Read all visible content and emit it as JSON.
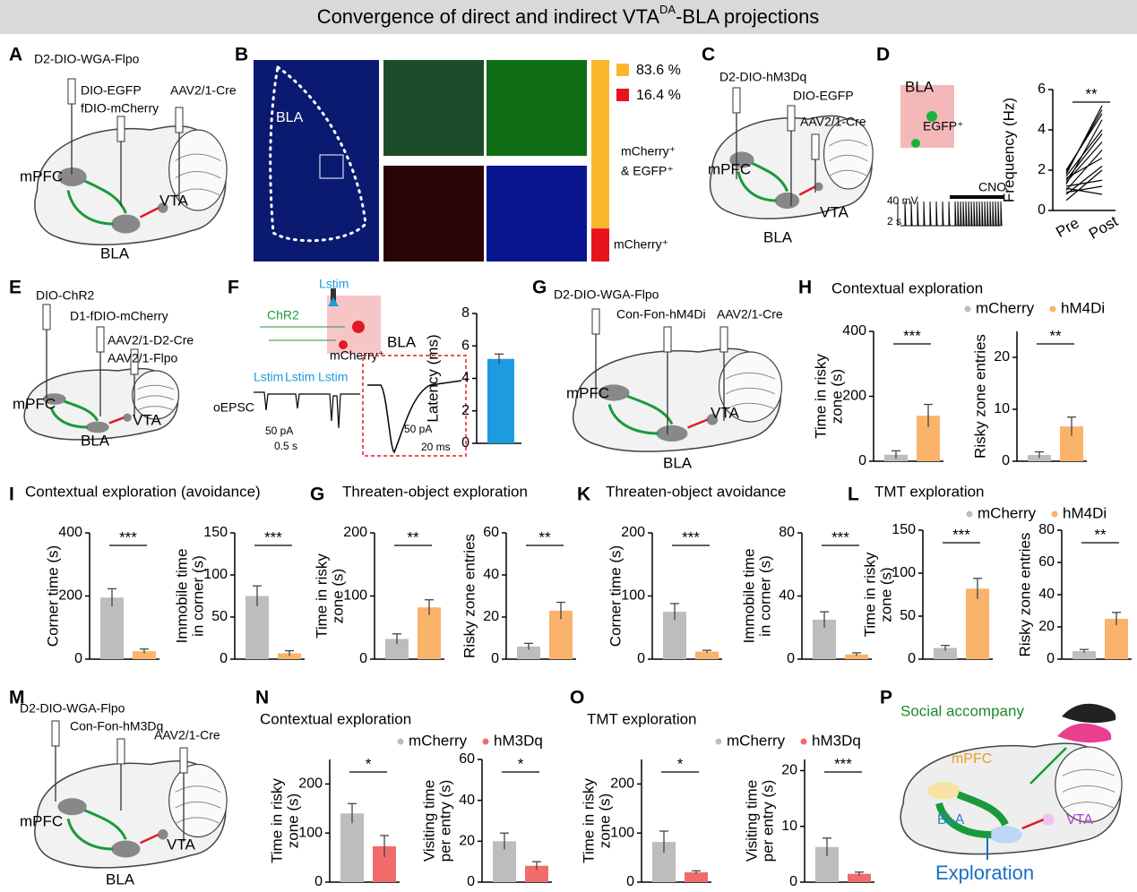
{
  "title": [
    "Convergence of direct and indirect VTA",
    "DA",
    "-BLA projections"
  ],
  "panels": [
    {
      "letter": "A",
      "labels": [
        "D2-DIO-WGA-Flpo",
        "DIO-EGFP",
        "fDIO-mCherry",
        "AAV2/1-Cre",
        "mPFC",
        "BLA",
        "VTA"
      ]
    },
    {
      "letter": "B",
      "region": "BLA",
      "values": [
        83.6,
        16.4
      ],
      "value_labels": [
        "83.6 %",
        "16.4 %"
      ],
      "colors": [
        "#fbb72c",
        "#e8141b"
      ],
      "names": [
        [
          "mCherry⁺",
          "& EGFP⁺"
        ],
        [
          "mCherry⁺"
        ]
      ]
    },
    {
      "letter": "C",
      "labels": [
        "D2-DIO-hM3Dq",
        "DIO-EGFP",
        "AAV2/1-Cre",
        "mPFC",
        "BLA",
        "VTA"
      ]
    },
    {
      "letter": "D",
      "labels": [
        "BLA",
        "EGFP⁺",
        "40 mV",
        "2 s",
        "CNO"
      ],
      "chart": {
        "ylabel": [
          "Frequency (Hz)"
        ],
        "categories": [
          "Pre",
          "Post"
        ],
        "ylim": [
          0,
          6
        ],
        "yticks": [
          0,
          2,
          4,
          6
        ],
        "pre": [
          0.8,
          1.0,
          1.2,
          1.3,
          1.5,
          1.6,
          1.8,
          2.0,
          1.1,
          0.9,
          1.4,
          0.5,
          1.7,
          1.9
        ],
        "post": [
          2.2,
          3.0,
          1.5,
          4.5,
          3.8,
          2.6,
          5.2,
          4.8,
          0.8,
          1.2,
          3.4,
          2.0,
          4.0,
          5.0
        ],
        "sig": "**"
      }
    },
    {
      "letter": "E",
      "labels": [
        "DIO-ChR2",
        "D1-fDIO-mCherry",
        "AAV2/1-D2-Cre",
        "AAV2/1-Flpo",
        "mPFC",
        "BLA",
        "VTA"
      ]
    },
    {
      "letter": "F",
      "labels": [
        "Lstim",
        "ChR2",
        "BLA",
        "mCherry⁺",
        "Lstim",
        "Lstim",
        "Lstim",
        "oEPSC",
        "50 pA",
        "0.5 s",
        "50 pA",
        "20 ms"
      ],
      "chart": {
        "ylabel": [
          "Latency (ms)"
        ],
        "ylim": [
          0,
          8
        ],
        "yticks": [
          0,
          2,
          4,
          6,
          8
        ],
        "values": [
          5.2
        ],
        "errors": [
          0.3
        ],
        "colors": [
          "#1c9be0"
        ]
      }
    },
    {
      "letter": "G",
      "labels": [
        "D2-DIO-WGA-Flpo",
        "Con-Fon-hM4Di",
        "AAV2/1-Cre",
        "mPFC",
        "BLA",
        "VTA"
      ]
    },
    {
      "letter": "H",
      "title": "Contextual exploration",
      "legend": [
        "mCherry",
        "hM4Di"
      ],
      "colors": [
        "#bdbdbd",
        "#f9b36b"
      ],
      "charts": [
        {
          "ylabel": [
            "Time in risky",
            "zone (s)"
          ],
          "ylim": [
            0,
            400
          ],
          "yticks": [
            0,
            200,
            400
          ],
          "values": [
            20,
            140
          ],
          "errors": [
            12,
            35
          ],
          "sig": "***"
        },
        {
          "ylabel": [
            "Risky zone entries"
          ],
          "ylim": [
            0,
            25
          ],
          "yticks": [
            0,
            10,
            20
          ],
          "values": [
            1.2,
            6.7
          ],
          "errors": [
            0.6,
            1.8
          ],
          "sig": "**"
        }
      ]
    },
    {
      "letter": "I",
      "title": "Contextual exploration (avoidance)",
      "colors": [
        "#bdbdbd",
        "#f9b36b"
      ],
      "charts": [
        {
          "ylabel": [
            "Corner time (s)"
          ],
          "ylim": [
            0,
            400
          ],
          "yticks": [
            0,
            200,
            400
          ],
          "values": [
            195,
            25
          ],
          "errors": [
            28,
            7
          ],
          "sig": "***"
        },
        {
          "ylabel": [
            "Immobile time",
            "in corner (s)"
          ],
          "ylim": [
            0,
            150
          ],
          "yticks": [
            0,
            50,
            100,
            150
          ],
          "values": [
            75,
            7
          ],
          "errors": [
            12,
            3
          ],
          "sig": "***"
        }
      ]
    },
    {
      "letter": "G",
      "title": "Threaten-object exploration",
      "colors": [
        "#bdbdbd",
        "#f9b36b"
      ],
      "charts": [
        {
          "ylabel": [
            "Time in risky",
            "zone (s)"
          ],
          "ylim": [
            0,
            200
          ],
          "yticks": [
            0,
            100,
            200
          ],
          "values": [
            32,
            82
          ],
          "errors": [
            8,
            12
          ],
          "sig": "**"
        },
        {
          "ylabel": [
            "Risky zone entries"
          ],
          "ylim": [
            0,
            60
          ],
          "yticks": [
            0,
            20,
            40,
            60
          ],
          "values": [
            6,
            23
          ],
          "errors": [
            1.5,
            4
          ],
          "sig": "**"
        }
      ]
    },
    {
      "letter": "K",
      "title": "Threaten-object avoidance",
      "colors": [
        "#bdbdbd",
        "#f9b36b"
      ],
      "charts": [
        {
          "ylabel": [
            "Corner time (s)"
          ],
          "ylim": [
            0,
            200
          ],
          "yticks": [
            0,
            100,
            200
          ],
          "values": [
            75,
            12
          ],
          "errors": [
            13,
            2
          ],
          "sig": "***"
        },
        {
          "ylabel": [
            "Immobile time",
            "in corner (s)"
          ],
          "ylim": [
            0,
            80
          ],
          "yticks": [
            0,
            40,
            80
          ],
          "values": [
            25,
            3
          ],
          "errors": [
            5,
            1
          ],
          "sig": "***"
        }
      ]
    },
    {
      "letter": "L",
      "title": "TMT exploration",
      "legend": [
        "mCherry",
        "hM4Di"
      ],
      "colors": [
        "#bdbdbd",
        "#f9b36b"
      ],
      "charts": [
        {
          "ylabel": [
            "Time in risky",
            "zone (s)"
          ],
          "ylim": [
            0,
            150
          ],
          "yticks": [
            0,
            50,
            100,
            150
          ],
          "values": [
            13,
            82
          ],
          "errors": [
            3,
            12
          ],
          "sig": "***"
        },
        {
          "ylabel": [
            "Risky zone entries"
          ],
          "ylim": [
            0,
            80
          ],
          "yticks": [
            0,
            20,
            40,
            60,
            80
          ],
          "values": [
            5,
            25
          ],
          "errors": [
            1,
            4
          ],
          "sig": "**"
        }
      ]
    },
    {
      "letter": "M",
      "labels": [
        "D2-DIO-WGA-Flpo",
        "Con-Fon-hM3Dq",
        "AAV2/1-Cre",
        "mPFC",
        "BLA",
        "VTA"
      ]
    },
    {
      "letter": "N",
      "title": "Contextual exploration",
      "legend": [
        "mCherry",
        "hM3Dq"
      ],
      "colors": [
        "#bdbdbd",
        "#f26b6b"
      ],
      "charts": [
        {
          "ylabel": [
            "Time in risky",
            "zone (s)"
          ],
          "ylim": [
            0,
            250
          ],
          "yticks": [
            0,
            100,
            200
          ],
          "values": [
            140,
            73
          ],
          "errors": [
            20,
            22
          ],
          "sig": "*"
        },
        {
          "ylabel": [
            "Visiting time",
            "per entry (s)"
          ],
          "ylim": [
            0,
            60
          ],
          "yticks": [
            0,
            20,
            40,
            60
          ],
          "values": [
            20,
            8
          ],
          "errors": [
            4,
            2
          ],
          "sig": "*"
        }
      ]
    },
    {
      "letter": "O",
      "title": "TMT exploration",
      "legend": [
        "mCherry",
        "hM3Dq"
      ],
      "colors": [
        "#bdbdbd",
        "#f26b6b"
      ],
      "charts": [
        {
          "ylabel": [
            "Time in risky",
            "zone (s)"
          ],
          "ylim": [
            0,
            250
          ],
          "yticks": [
            0,
            100,
            200
          ],
          "values": [
            82,
            20
          ],
          "errors": [
            22,
            3
          ],
          "sig": "*"
        },
        {
          "ylabel": [
            "Visiting time",
            "per entry (s)"
          ],
          "ylim": [
            0,
            22
          ],
          "yticks": [
            0,
            10,
            20
          ],
          "values": [
            6.3,
            1.5
          ],
          "errors": [
            1.6,
            0.3
          ],
          "sig": "***"
        }
      ]
    },
    {
      "letter": "P",
      "labels": [
        "Social accompany",
        "mPFC",
        "BLA",
        "VTA",
        "Exploration"
      ]
    }
  ]
}
